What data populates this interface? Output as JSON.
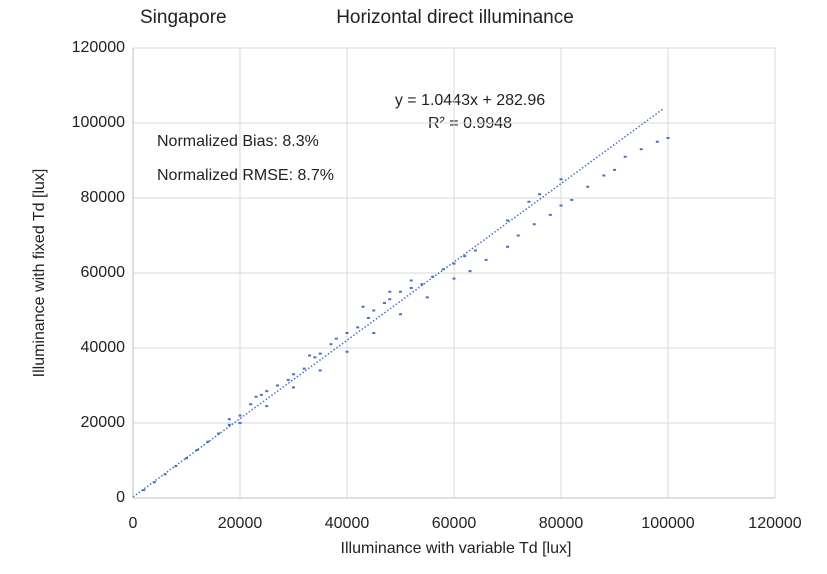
{
  "chart_data": {
    "type": "scatter",
    "title": "Horizontal direct illuminance",
    "subtitle": "Singapore",
    "x_label": "Illuminance  with variable Td [lux]",
    "y_label": "Illuminance  with fixed Td [lux]",
    "annotations": [
      "y = 1.0443x + 282.96",
      "R² = 0.9948",
      "Normalized Bias: 8.3%",
      "Normalized RMSE: 8.7%"
    ],
    "trendline": {
      "slope": 1.0443,
      "intercept": 282.96,
      "xlim": [
        0,
        99000
      ]
    },
    "color": "#4472c4",
    "grid": true,
    "xlim": [
      0,
      120000
    ],
    "xticks": [
      0,
      20000,
      40000,
      60000,
      80000,
      100000,
      120000
    ],
    "ylim": [
      0,
      120000
    ],
    "yticks": [
      0,
      20000,
      40000,
      60000,
      80000,
      100000,
      120000
    ],
    "series": [
      {
        "name": "Horizontal direct illuminance",
        "color": "#4472c4",
        "x": [
          2000,
          4000,
          6000,
          8000,
          10000,
          12000,
          14000,
          16000,
          18000,
          20000,
          22000,
          24000,
          25000,
          27000,
          29000,
          30000,
          32000,
          34000,
          35000,
          37000,
          38000,
          40000,
          42000,
          44000,
          45000,
          47000,
          48000,
          50000,
          52000,
          54000,
          56000,
          58000,
          60000,
          62000,
          64000,
          20000,
          25000,
          30000,
          35000,
          40000,
          45000,
          50000,
          55000,
          60000,
          63000,
          66000,
          70000,
          72000,
          75000,
          78000,
          80000,
          82000,
          85000,
          88000,
          90000,
          92000,
          95000,
          98000,
          100000,
          70000,
          74000,
          76000,
          80000,
          18000,
          23000,
          33000,
          43000,
          48000,
          52000
        ],
        "values": [
          2100,
          4200,
          6300,
          8500,
          10600,
          12800,
          15000,
          17200,
          19500,
          22000,
          25000,
          27500,
          28500,
          30000,
          31500,
          33000,
          34500,
          37500,
          38500,
          41000,
          42500,
          44000,
          45500,
          48000,
          50000,
          52000,
          53000,
          55000,
          56000,
          57000,
          59000,
          61000,
          62500,
          64500,
          66000,
          20000,
          24500,
          29500,
          34000,
          39000,
          44000,
          49000,
          53500,
          58500,
          60500,
          63500,
          67000,
          70000,
          73000,
          75500,
          78000,
          79500,
          83000,
          86000,
          87500,
          91000,
          93000,
          95000,
          96000,
          74000,
          79000,
          81000,
          85000,
          21000,
          27000,
          38000,
          51000,
          55000,
          58000
        ]
      }
    ]
  }
}
